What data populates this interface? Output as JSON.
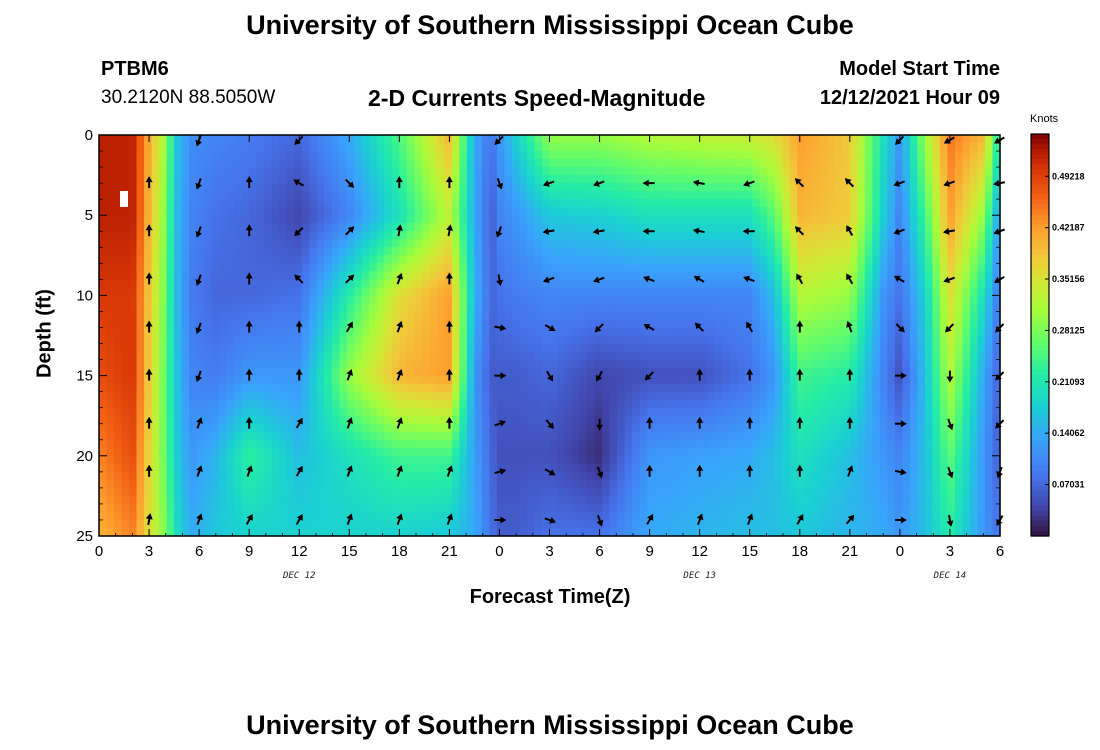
{
  "header": {
    "title": "University of Southern Mississippi Ocean Cube",
    "station": "PTBM6",
    "coords": "30.2120N  88.5050W",
    "plot_title": "2-D Currents Speed-Magnitude",
    "model_label": "Model Start Time",
    "model_time": "12/12/2021 Hour 09"
  },
  "footer": {
    "title": "University of Southern Mississippi Ocean Cube"
  },
  "chart_data": {
    "type": "heatmap",
    "title": "2-D Currents Speed-Magnitude",
    "xlabel": "Forecast Time(Z)",
    "ylabel": "Depth (ft)",
    "x_tick_labels": [
      "0",
      "3",
      "6",
      "9",
      "12",
      "15",
      "18",
      "21",
      "0",
      "3",
      "6",
      "9",
      "12",
      "15",
      "18",
      "21",
      "0",
      "3",
      "6"
    ],
    "day_labels": [
      {
        "label": "DEC 12",
        "hour": 12
      },
      {
        "label": "DEC 13",
        "hour": 36
      },
      {
        "label": "DEC 14",
        "hour": 51
      }
    ],
    "xlim": [
      0,
      54
    ],
    "y_ticks": [
      0,
      5,
      10,
      15,
      20,
      25
    ],
    "ylim": [
      0,
      25
    ],
    "colorbar": {
      "title": "Knots",
      "range": [
        0,
        0.55
      ],
      "tick_labels": [
        "0.49218",
        "0.42187",
        "0.35156",
        "0.28125",
        "0.21093",
        "0.14062",
        "0.07031"
      ],
      "tick_values": [
        0.49218,
        0.42187,
        0.35156,
        0.28125,
        0.21093,
        0.14062,
        0.07031
      ]
    },
    "speed_profiles": [
      {
        "hour": 0,
        "depths": [
          0,
          5,
          10,
          15,
          20,
          25
        ],
        "values": [
          0.52,
          0.52,
          0.5,
          0.48,
          0.44,
          0.4
        ]
      },
      {
        "hour": 2,
        "depths": [
          0,
          5,
          10,
          15,
          20,
          25
        ],
        "values": [
          0.52,
          0.52,
          0.5,
          0.5,
          0.48,
          0.44
        ]
      },
      {
        "hour": 4,
        "depths": [
          0,
          5,
          10,
          15,
          20,
          25
        ],
        "values": [
          0.3,
          0.28,
          0.27,
          0.26,
          0.26,
          0.28
        ]
      },
      {
        "hour": 4.6,
        "depths": [
          0,
          5,
          10,
          15,
          20,
          25
        ],
        "values": [
          0.17,
          0.16,
          0.16,
          0.17,
          0.18,
          0.2
        ]
      },
      {
        "hour": 5.5,
        "depths": [
          0,
          5,
          10,
          15,
          20,
          25
        ],
        "values": [
          0.11,
          0.1,
          0.09,
          0.1,
          0.12,
          0.14
        ]
      },
      {
        "hour": 7,
        "depths": [
          0,
          5,
          10,
          15,
          20,
          25
        ],
        "values": [
          0.1,
          0.08,
          0.07,
          0.09,
          0.15,
          0.17
        ]
      },
      {
        "hour": 9,
        "depths": [
          0,
          5,
          10,
          15,
          20,
          25
        ],
        "values": [
          0.09,
          0.07,
          0.07,
          0.12,
          0.23,
          0.18
        ]
      },
      {
        "hour": 12,
        "depths": [
          0,
          5,
          10,
          15,
          20,
          25
        ],
        "values": [
          0.07,
          0.04,
          0.08,
          0.12,
          0.16,
          0.18
        ]
      },
      {
        "hour": 15,
        "depths": [
          0,
          5,
          10,
          15,
          20,
          25
        ],
        "values": [
          0.14,
          0.1,
          0.22,
          0.3,
          0.2,
          0.18
        ]
      },
      {
        "hour": 18,
        "depths": [
          0,
          5,
          10,
          15,
          20,
          25
        ],
        "values": [
          0.25,
          0.2,
          0.36,
          0.4,
          0.24,
          0.18
        ]
      },
      {
        "hour": 21,
        "depths": [
          0,
          5,
          10,
          15,
          20,
          25
        ],
        "values": [
          0.4,
          0.33,
          0.42,
          0.42,
          0.24,
          0.17
        ]
      },
      {
        "hour": 22.5,
        "depths": [
          0,
          5,
          10,
          15,
          20,
          25
        ],
        "values": [
          0.14,
          0.14,
          0.15,
          0.12,
          0.13,
          0.14
        ]
      },
      {
        "hour": 23.5,
        "depths": [
          0,
          5,
          10,
          15,
          20,
          25
        ],
        "values": [
          0.08,
          0.06,
          0.07,
          0.06,
          0.07,
          0.08
        ]
      },
      {
        "hour": 24,
        "depths": [
          0,
          5,
          10,
          15,
          20,
          25
        ],
        "values": [
          0.12,
          0.1,
          0.08,
          0.06,
          0.05,
          0.06
        ]
      },
      {
        "hour": 25,
        "depths": [
          0,
          5,
          10,
          15,
          20,
          25
        ],
        "values": [
          0.18,
          0.12,
          0.09,
          0.06,
          0.05,
          0.06
        ]
      },
      {
        "hour": 27,
        "depths": [
          0,
          5,
          10,
          15,
          20,
          25
        ],
        "values": [
          0.3,
          0.17,
          0.1,
          0.07,
          0.05,
          0.08
        ]
      },
      {
        "hour": 30,
        "depths": [
          0,
          5,
          10,
          15,
          20,
          25
        ],
        "values": [
          0.3,
          0.18,
          0.1,
          0.04,
          0.02,
          0.08
        ]
      },
      {
        "hour": 33,
        "depths": [
          0,
          5,
          10,
          15,
          20,
          25
        ],
        "values": [
          0.32,
          0.2,
          0.1,
          0.05,
          0.12,
          0.14
        ]
      },
      {
        "hour": 36,
        "depths": [
          0,
          5,
          10,
          15,
          20,
          25
        ],
        "values": [
          0.33,
          0.2,
          0.1,
          0.05,
          0.13,
          0.15
        ]
      },
      {
        "hour": 39,
        "depths": [
          0,
          5,
          10,
          15,
          20,
          25
        ],
        "values": [
          0.34,
          0.2,
          0.1,
          0.08,
          0.14,
          0.16
        ]
      },
      {
        "hour": 40.5,
        "depths": [
          0,
          5,
          10,
          15,
          20,
          25
        ],
        "values": [
          0.36,
          0.26,
          0.16,
          0.12,
          0.16,
          0.16
        ]
      },
      {
        "hour": 42,
        "depths": [
          0,
          5,
          10,
          15,
          20,
          25
        ],
        "values": [
          0.42,
          0.4,
          0.32,
          0.24,
          0.2,
          0.17
        ]
      },
      {
        "hour": 45,
        "depths": [
          0,
          5,
          10,
          15,
          20,
          25
        ],
        "values": [
          0.38,
          0.38,
          0.3,
          0.22,
          0.16,
          0.15
        ]
      },
      {
        "hour": 47,
        "depths": [
          0,
          5,
          10,
          15,
          20,
          25
        ],
        "values": [
          0.2,
          0.18,
          0.12,
          0.1,
          0.12,
          0.14
        ]
      },
      {
        "hour": 48,
        "depths": [
          0,
          5,
          10,
          15,
          20,
          25
        ],
        "values": [
          0.12,
          0.1,
          0.08,
          0.05,
          0.1,
          0.12
        ]
      },
      {
        "hour": 49.5,
        "depths": [
          0,
          5,
          10,
          15,
          20,
          25
        ],
        "values": [
          0.3,
          0.24,
          0.18,
          0.16,
          0.16,
          0.16
        ]
      },
      {
        "hour": 51,
        "depths": [
          0,
          5,
          10,
          15,
          20,
          25
        ],
        "values": [
          0.45,
          0.42,
          0.36,
          0.32,
          0.26,
          0.22
        ]
      },
      {
        "hour": 53,
        "depths": [
          0,
          5,
          10,
          15,
          20,
          25
        ],
        "values": [
          0.4,
          0.3,
          0.2,
          0.14,
          0.12,
          0.12
        ]
      },
      {
        "hour": 54,
        "depths": [
          0,
          5,
          10,
          15,
          20,
          25
        ],
        "values": [
          0.2,
          0.12,
          0.08,
          0.06,
          0.06,
          0.08
        ]
      }
    ],
    "vector_depths": [
      0,
      3,
      6,
      9,
      12,
      15,
      18,
      21,
      24
    ],
    "vectors": [
      {
        "hour": 3,
        "dirs": [
          null,
          0,
          0,
          0,
          0,
          0,
          0,
          0,
          10
        ]
      },
      {
        "hour": 6,
        "dirs": [
          200,
          200,
          200,
          200,
          200,
          200,
          20,
          20,
          20
        ]
      },
      {
        "hour": 9,
        "dirs": [
          null,
          0,
          0,
          0,
          0,
          0,
          0,
          20,
          30
        ]
      },
      {
        "hour": 12,
        "dirs": [
          225,
          300,
          225,
          315,
          0,
          0,
          30,
          30,
          30
        ]
      },
      {
        "hour": 15,
        "dirs": [
          null,
          135,
          45,
          45,
          30,
          20,
          20,
          20,
          20
        ]
      },
      {
        "hour": 18,
        "dirs": [
          null,
          0,
          10,
          20,
          20,
          20,
          20,
          20,
          20
        ]
      },
      {
        "hour": 21,
        "dirs": [
          null,
          0,
          10,
          0,
          0,
          0,
          0,
          20,
          20
        ]
      },
      {
        "hour": 24,
        "dirs": [
          225,
          160,
          200,
          170,
          100,
          90,
          70,
          75,
          90
        ]
      },
      {
        "hour": 27,
        "dirs": [
          null,
          250,
          260,
          250,
          120,
          150,
          140,
          120,
          110
        ]
      },
      {
        "hour": 30,
        "dirs": [
          null,
          250,
          260,
          250,
          225,
          210,
          180,
          160,
          160
        ]
      },
      {
        "hour": 33,
        "dirs": [
          null,
          270,
          270,
          290,
          300,
          225,
          0,
          0,
          30
        ]
      },
      {
        "hour": 36,
        "dirs": [
          null,
          280,
          280,
          300,
          315,
          0,
          0,
          0,
          20
        ]
      },
      {
        "hour": 39,
        "dirs": [
          null,
          250,
          270,
          290,
          330,
          0,
          0,
          0,
          20
        ]
      },
      {
        "hour": 42,
        "dirs": [
          null,
          315,
          315,
          330,
          0,
          0,
          0,
          0,
          30
        ]
      },
      {
        "hour": 45,
        "dirs": [
          null,
          315,
          330,
          330,
          340,
          0,
          0,
          20,
          40
        ]
      },
      {
        "hour": 48,
        "dirs": [
          225,
          250,
          250,
          300,
          135,
          90,
          90,
          100,
          90
        ]
      },
      {
        "hour": 51,
        "dirs": [
          240,
          250,
          260,
          250,
          225,
          180,
          160,
          160,
          170
        ]
      },
      {
        "hour": 54,
        "dirs": [
          240,
          260,
          250,
          240,
          225,
          225,
          225,
          200,
          210
        ]
      }
    ]
  }
}
